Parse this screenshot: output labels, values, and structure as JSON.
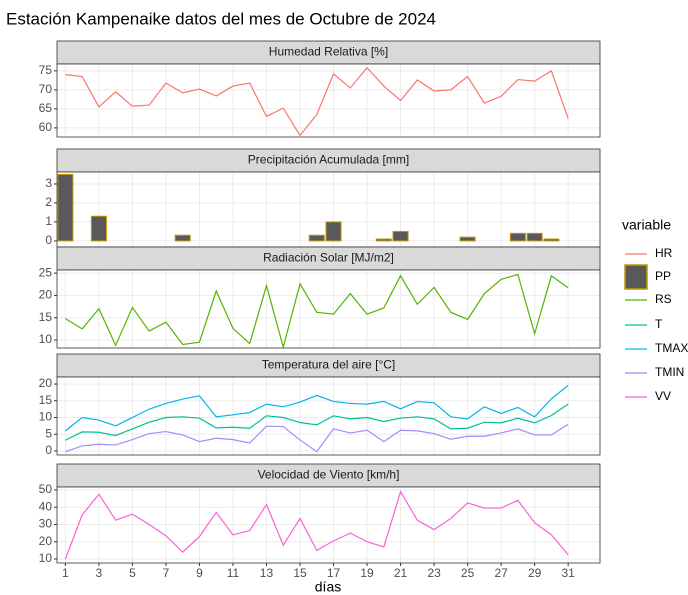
{
  "title": "Estación Kampenaike datos del mes de Octubre de 2024",
  "x_label": "días",
  "legend_title": "variable",
  "chart_data": [
    {
      "type": "line",
      "title": "Humedad Relativa [%]",
      "x": [
        1,
        2,
        3,
        4,
        5,
        6,
        7,
        8,
        9,
        10,
        11,
        12,
        13,
        14,
        15,
        16,
        17,
        18,
        19,
        20,
        21,
        22,
        23,
        24,
        25,
        26,
        27,
        28,
        29,
        30,
        31
      ],
      "xlim": [
        0.5,
        32.9
      ],
      "xticks": [
        1,
        3,
        5,
        7,
        9,
        11,
        13,
        15,
        17,
        19,
        21,
        23,
        25,
        27,
        29,
        31
      ],
      "ylim": [
        57.6,
        76.8
      ],
      "yticks": [
        60,
        65,
        70,
        75
      ],
      "grid": true,
      "series": [
        {
          "name": "HR",
          "color": "#F8766D",
          "values": [
            74,
            73.5,
            65.5,
            69.5,
            65.7,
            66,
            71.8,
            69.2,
            70.2,
            68.4,
            71,
            71.8,
            63,
            65.2,
            58,
            63.5,
            74.2,
            70.5,
            75.8,
            71,
            67.2,
            72.6,
            69.7,
            70,
            73.5,
            66.5,
            68.3,
            72.7,
            72.3,
            75,
            62.5
          ]
        }
      ]
    },
    {
      "type": "bar",
      "title": "Precipitación Acumulada [mm]",
      "x": [
        1,
        2,
        3,
        4,
        5,
        6,
        7,
        8,
        9,
        10,
        11,
        12,
        13,
        14,
        15,
        16,
        17,
        18,
        19,
        20,
        21,
        22,
        23,
        24,
        25,
        26,
        27,
        28,
        29,
        30,
        31
      ],
      "xlim": [
        0.5,
        32.9
      ],
      "xticks": [
        1,
        3,
        5,
        7,
        9,
        11,
        13,
        15,
        17,
        19,
        21,
        23,
        25,
        27,
        29,
        31
      ],
      "ylim": [
        -0.32,
        3.63
      ],
      "yticks": [
        0,
        1,
        2,
        3
      ],
      "grid": true,
      "series": [
        {
          "name": "PP",
          "color": "#595959",
          "edgecolor": "#C49A00",
          "values": [
            3.5,
            0,
            1.3,
            0,
            0,
            0,
            0,
            0.3,
            0,
            0,
            0,
            0,
            0,
            0,
            0,
            0.3,
            1.0,
            0,
            0,
            0.1,
            0.5,
            0,
            0,
            0,
            0.2,
            0,
            0,
            0.4,
            0.4,
            0.1,
            0
          ]
        }
      ]
    },
    {
      "type": "line",
      "title": "Radiación Solar [MJ/m2]",
      "x": [
        1,
        2,
        3,
        4,
        5,
        6,
        7,
        8,
        9,
        10,
        11,
        12,
        13,
        14,
        15,
        16,
        17,
        18,
        19,
        20,
        21,
        22,
        23,
        24,
        25,
        26,
        27,
        28,
        29,
        30,
        31
      ],
      "xlim": [
        0.5,
        32.9
      ],
      "xticks": [
        1,
        3,
        5,
        7,
        9,
        11,
        13,
        15,
        17,
        19,
        21,
        23,
        25,
        27,
        29,
        31
      ],
      "ylim": [
        8.2,
        25.7
      ],
      "yticks": [
        10,
        15,
        20,
        25
      ],
      "grid": true,
      "series": [
        {
          "name": "RS",
          "color": "#53B400",
          "values": [
            14.8,
            12.5,
            17,
            8.8,
            17.3,
            12,
            14,
            9,
            9.5,
            21,
            12.6,
            9.2,
            22.2,
            8.4,
            22.6,
            16.2,
            15.8,
            20.4,
            15.8,
            17.2,
            24.4,
            18,
            21.8,
            16.2,
            14.6,
            20.4,
            23.6,
            24.7,
            11.4,
            24.4,
            21.7
          ]
        }
      ]
    },
    {
      "type": "line",
      "title": "Temperatura del aire [°C]",
      "x": [
        1,
        2,
        3,
        4,
        5,
        6,
        7,
        8,
        9,
        10,
        11,
        12,
        13,
        14,
        15,
        16,
        17,
        18,
        19,
        20,
        21,
        22,
        23,
        24,
        25,
        26,
        27,
        28,
        29,
        30,
        31
      ],
      "xlim": [
        0.5,
        32.9
      ],
      "xticks": [
        1,
        3,
        5,
        7,
        9,
        11,
        13,
        15,
        17,
        19,
        21,
        23,
        25,
        27,
        29,
        31
      ],
      "ylim": [
        -1.2,
        22.1
      ],
      "yticks": [
        0,
        5,
        10,
        15,
        20
      ],
      "grid": true,
      "series": [
        {
          "name": "T",
          "color": "#00C094",
          "values": [
            3.2,
            5.7,
            5.6,
            4.6,
            6.6,
            8.6,
            10,
            10.2,
            9.8,
            6.9,
            7.1,
            6.8,
            10.5,
            10,
            8.5,
            7.8,
            10.5,
            9.6,
            10,
            8.8,
            9.8,
            10.2,
            9.6,
            6.6,
            6.8,
            8.6,
            8.4,
            9.8,
            8.4,
            10.6,
            14
          ]
        },
        {
          "name": "TMAX",
          "color": "#00B6EB",
          "values": [
            6,
            10,
            9.2,
            7.5,
            10,
            12.5,
            14.2,
            15.5,
            16.5,
            10.2,
            10.8,
            11.5,
            14,
            13.2,
            14.6,
            16.6,
            14.8,
            14.2,
            14,
            14.8,
            12.6,
            14.8,
            14.4,
            10.2,
            9.6,
            13.2,
            11.2,
            13,
            10.2,
            15.6,
            19.6
          ]
        },
        {
          "name": "TMIN",
          "color": "#A58AFF",
          "values": [
            -0.2,
            1.5,
            2,
            1.8,
            3.4,
            5.2,
            5.8,
            4.8,
            2.8,
            3.8,
            3.4,
            2.4,
            7.4,
            7.3,
            3.3,
            -0.2,
            6.6,
            5.4,
            6.2,
            2.8,
            6.2,
            6,
            5.2,
            3.5,
            4.4,
            4.4,
            5.4,
            6.6,
            4.8,
            4.8,
            8
          ]
        }
      ]
    },
    {
      "type": "line",
      "title": "Velocidad de Viento [km/h]",
      "x": [
        1,
        2,
        3,
        4,
        5,
        6,
        7,
        8,
        9,
        10,
        11,
        12,
        13,
        14,
        15,
        16,
        17,
        18,
        19,
        20,
        21,
        22,
        23,
        24,
        25,
        26,
        27,
        28,
        29,
        30,
        31
      ],
      "xlim": [
        0.5,
        32.9
      ],
      "xticks": [
        1,
        3,
        5,
        7,
        9,
        11,
        13,
        15,
        17,
        19,
        21,
        23,
        25,
        27,
        29,
        31
      ],
      "ylim": [
        7.7,
        51.7
      ],
      "yticks": [
        10,
        20,
        30,
        40,
        50
      ],
      "grid": true,
      "series": [
        {
          "name": "VV",
          "color": "#FB61D7",
          "values": [
            10,
            35.5,
            47.5,
            32.5,
            36,
            30,
            23.5,
            14,
            23,
            37,
            24,
            26.5,
            41.5,
            18,
            33.5,
            15,
            20.5,
            25,
            20,
            17,
            49,
            32.5,
            27,
            33.5,
            42.5,
            39.5,
            39.5,
            44,
            31,
            24,
            12.5
          ]
        }
      ]
    }
  ]
}
